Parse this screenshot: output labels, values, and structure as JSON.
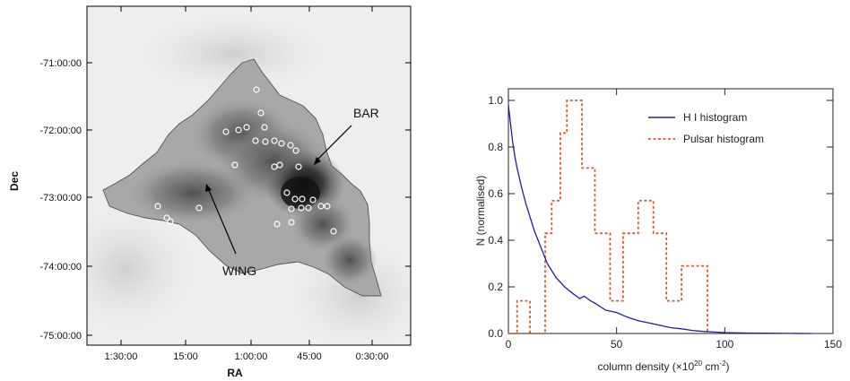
{
  "chart_data": [
    {
      "type": "image",
      "xlabel": "RA",
      "ylabel": "Dec",
      "x_ticks": [
        "1:30:00",
        "15:00",
        "1:00:00",
        "45:00",
        "0:30:00"
      ],
      "y_ticks": [
        "-71:00:00",
        "-72:00:00",
        "-73:00:00",
        "-74:00:00",
        "-75:00:00"
      ],
      "annotations": [
        "BAR",
        "WING"
      ]
    },
    {
      "type": "line",
      "xlabel_main": "column density (×10",
      "xlabel_exp1": "20",
      "xlabel_mid": " cm",
      "xlabel_exp2": "-2",
      "xlabel_end": ")",
      "ylabel": "N (normalised)",
      "xlim": [
        0,
        150
      ],
      "ylim": [
        0,
        1.05
      ],
      "x_ticks": [
        0,
        50,
        100,
        150
      ],
      "y_ticks": [
        0.0,
        0.2,
        0.4,
        0.6,
        0.8,
        1.0
      ],
      "legend_position": "top-right",
      "series": [
        {
          "name": "H I histogram",
          "color": "#1f1fa0",
          "x": [
            0,
            1,
            2,
            3,
            4,
            6,
            8,
            10,
            12,
            15,
            18,
            22,
            26,
            30,
            33,
            35,
            38,
            40,
            45,
            50,
            55,
            60,
            65,
            70,
            75,
            80,
            85,
            90,
            95,
            100,
            110,
            120,
            130,
            140
          ],
          "y": [
            0.98,
            0.9,
            0.82,
            0.76,
            0.71,
            0.63,
            0.56,
            0.5,
            0.44,
            0.37,
            0.3,
            0.24,
            0.2,
            0.17,
            0.15,
            0.16,
            0.14,
            0.13,
            0.1,
            0.09,
            0.07,
            0.055,
            0.045,
            0.035,
            0.025,
            0.02,
            0.013,
            0.009,
            0.006,
            0.004,
            0.002,
            0.001,
            0.0005,
            0.0
          ]
        },
        {
          "name": "Pulsar histogram",
          "color": "#e05a30",
          "bin_edges": [
            0,
            4,
            10,
            17,
            20,
            24,
            27,
            34,
            40,
            47,
            53,
            60,
            67,
            73,
            80,
            86,
            92
          ],
          "values": [
            0,
            0.14,
            0,
            0.43,
            0.57,
            0.86,
            1.0,
            0.71,
            0.43,
            0.14,
            0.43,
            0.57,
            0.43,
            0.14,
            0.29,
            0.29
          ]
        }
      ]
    }
  ]
}
